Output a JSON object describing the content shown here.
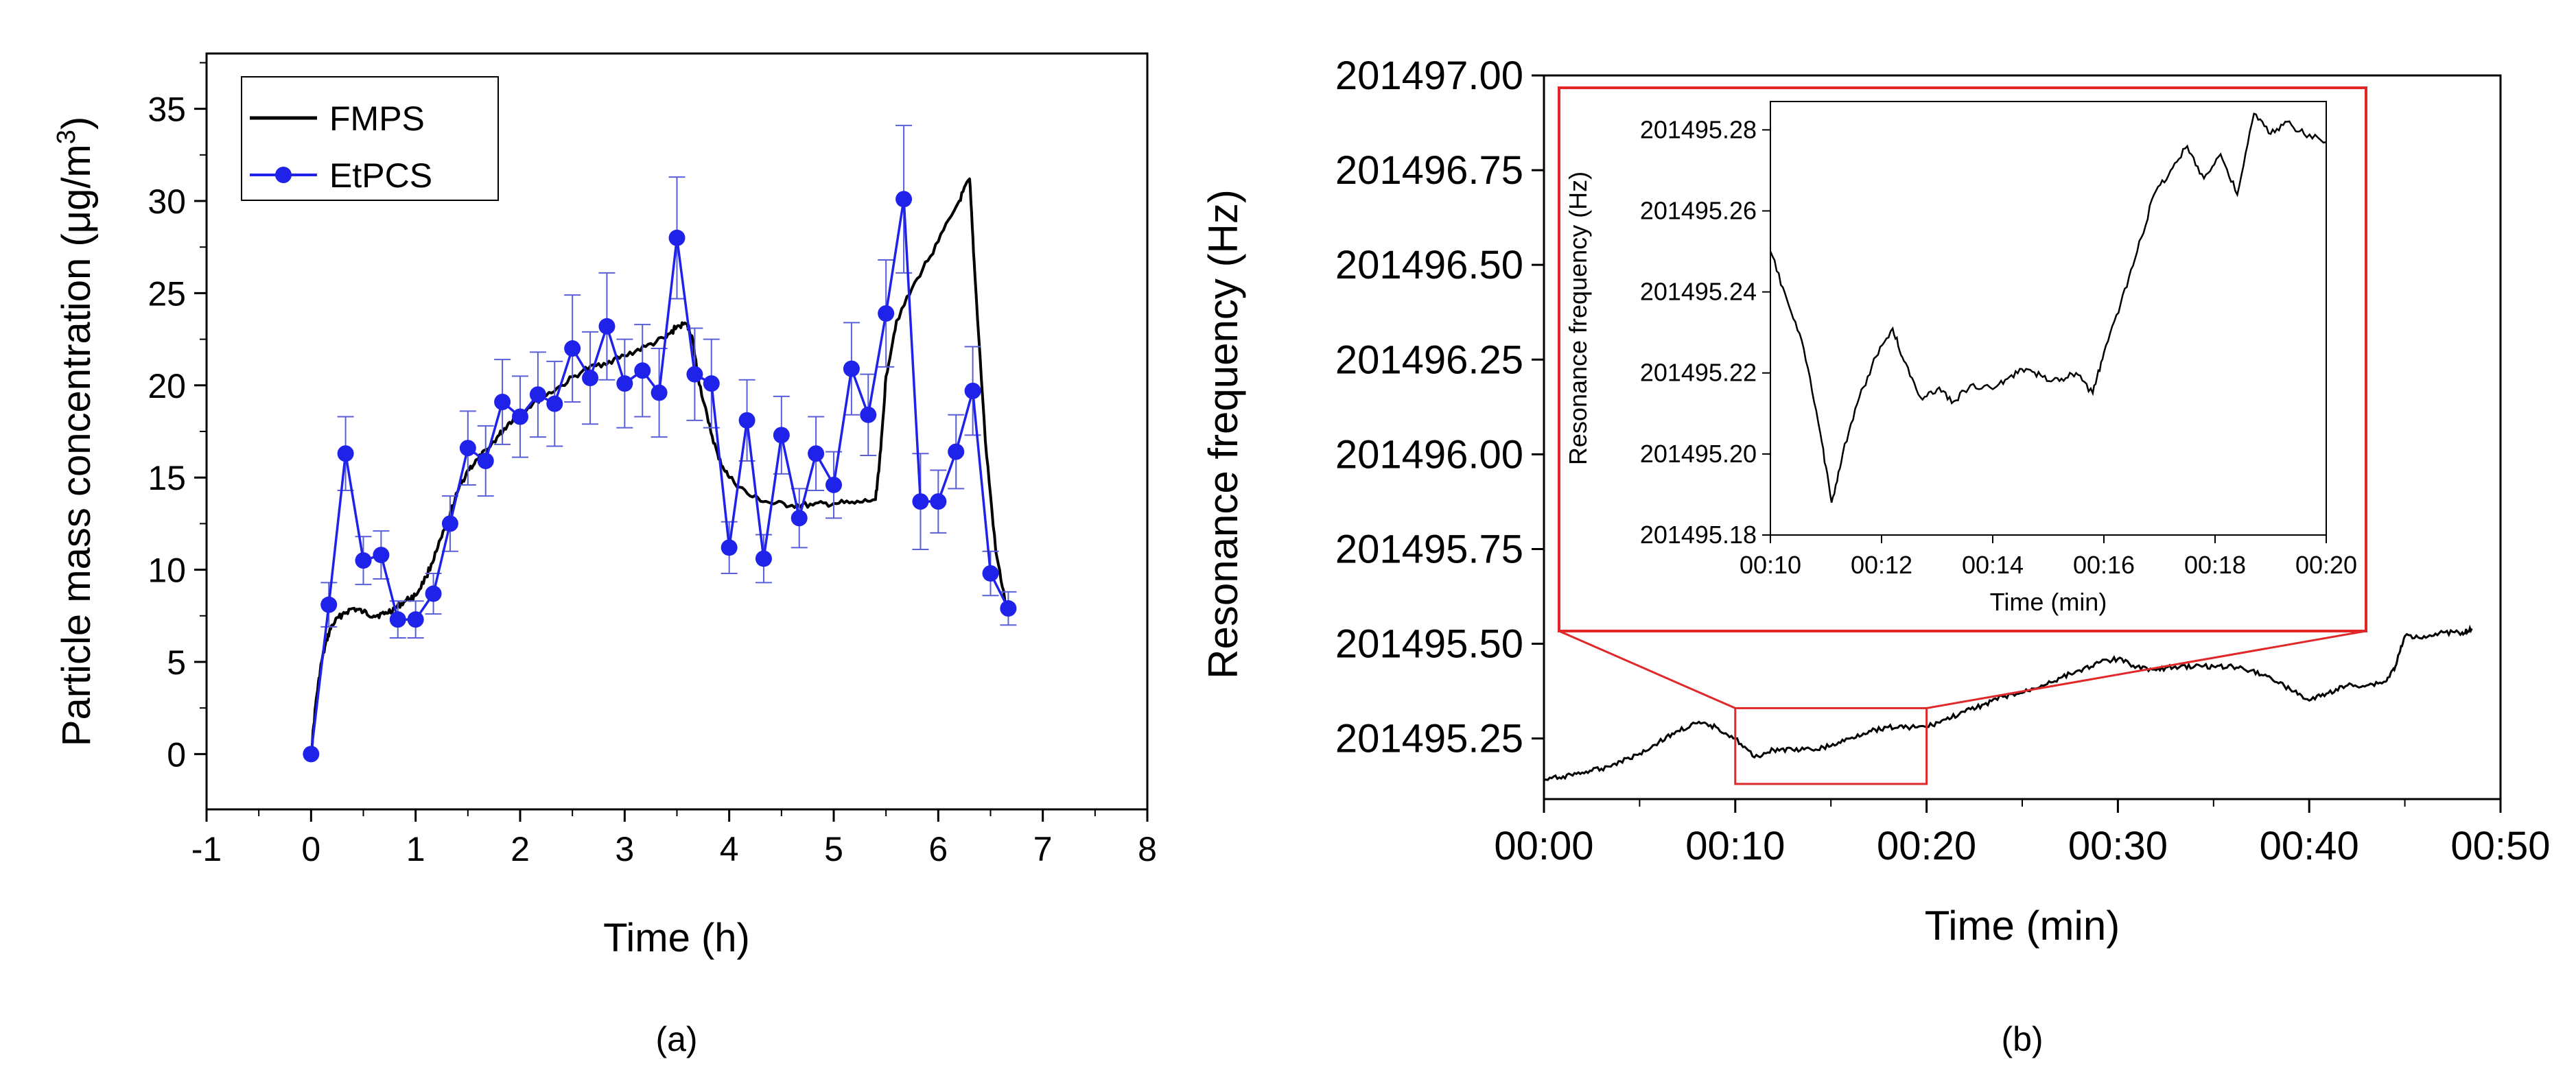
{
  "panels": {
    "a_caption": "(a)",
    "b_caption": "(b)"
  },
  "chart_data": [
    {
      "type": "line",
      "xlabel": "Time (h)",
      "ylabel": "Particle mass concentration (μg/m³)",
      "ylabel_main": "Particle mass concentration (",
      "ylabel_mu": "μ",
      "ylabel_unit": "g/m",
      "ylabel_sup": "3",
      "ylabel_close": ")",
      "xlim": [
        -1,
        8
      ],
      "ylim": [
        -3,
        38
      ],
      "xticks": [
        -1,
        0,
        1,
        2,
        3,
        4,
        5,
        6,
        7,
        8
      ],
      "yticks": [
        0,
        5,
        10,
        15,
        20,
        25,
        30,
        35
      ],
      "legend_position": "top-left",
      "grid": false,
      "series": [
        {
          "name": "FMPS",
          "color": "#000000",
          "x": [
            0,
            0.05,
            0.1,
            0.15,
            0.2,
            0.3,
            0.4,
            0.5,
            0.6,
            0.7,
            0.8,
            0.9,
            1.0,
            1.1,
            1.2,
            1.3,
            1.4,
            1.5,
            1.6,
            1.7,
            1.8,
            1.9,
            2.0,
            2.2,
            2.4,
            2.6,
            2.8,
            3.0,
            3.2,
            3.4,
            3.5,
            3.6,
            3.65,
            3.7,
            3.8,
            3.9,
            4.0,
            4.2,
            4.4,
            4.6,
            4.8,
            5.0,
            5.2,
            5.4,
            5.45,
            5.5,
            5.6,
            5.8,
            6.0,
            6.2,
            6.3,
            6.35,
            6.45,
            6.55,
            6.65
          ],
          "values": [
            0,
            3.0,
            5.0,
            6.2,
            7.0,
            7.6,
            7.9,
            7.7,
            7.5,
            7.6,
            7.9,
            8.3,
            8.6,
            9.6,
            11.0,
            12.5,
            14.2,
            15.4,
            16.0,
            16.6,
            17.3,
            18.0,
            18.5,
            19.3,
            20.0,
            20.8,
            21.2,
            21.6,
            22.1,
            22.6,
            23.2,
            23.3,
            22.5,
            20.5,
            18.0,
            16.0,
            15.0,
            14.0,
            13.6,
            13.5,
            13.5,
            13.6,
            13.6,
            13.8,
            16.5,
            20.5,
            23.5,
            25.8,
            27.8,
            30.0,
            31.2,
            26.0,
            17.0,
            11.0,
            8.0
          ]
        },
        {
          "name": "EtPCS",
          "color": "#1f22e8",
          "x": [
            0,
            0.17,
            0.33,
            0.5,
            0.67,
            0.83,
            1.0,
            1.17,
            1.33,
            1.5,
            1.67,
            1.83,
            2.0,
            2.17,
            2.33,
            2.5,
            2.67,
            2.83,
            3.0,
            3.17,
            3.33,
            3.5,
            3.67,
            3.83,
            4.0,
            4.17,
            4.33,
            4.5,
            4.67,
            4.83,
            5.0,
            5.17,
            5.33,
            5.5,
            5.67,
            5.83,
            6.0,
            6.17,
            6.33,
            6.5,
            6.67
          ],
          "values": [
            0,
            8.1,
            16.3,
            10.5,
            10.8,
            7.3,
            7.3,
            8.7,
            12.5,
            16.6,
            15.9,
            19.1,
            18.3,
            19.5,
            19.0,
            22.0,
            20.4,
            23.2,
            20.1,
            20.8,
            19.6,
            28.0,
            20.6,
            20.1,
            11.2,
            18.1,
            10.6,
            17.3,
            12.8,
            16.3,
            14.6,
            20.9,
            18.4,
            23.9,
            30.1,
            13.7,
            13.7,
            16.4,
            19.7,
            9.8,
            7.9
          ],
          "errors": [
            0,
            1.2,
            2.0,
            1.3,
            1.3,
            1.0,
            1.0,
            1.1,
            1.5,
            2.0,
            1.9,
            2.3,
            2.2,
            2.3,
            2.3,
            2.9,
            2.5,
            2.9,
            2.4,
            2.5,
            2.4,
            3.3,
            2.5,
            2.4,
            1.4,
            2.2,
            1.3,
            2.1,
            1.6,
            2.0,
            1.8,
            2.5,
            2.2,
            2.9,
            4.0,
            2.6,
            1.7,
            2.0,
            2.4,
            1.2,
            0.9
          ]
        }
      ]
    },
    {
      "type": "line",
      "xlabel": "Time (min)",
      "ylabel": "Resonance frequency (Hz)",
      "xlim": [
        0,
        50
      ],
      "ylim": [
        201495.09,
        201497.0
      ],
      "xticks": [
        0,
        10,
        20,
        30,
        40,
        50
      ],
      "xtick_labels": [
        "00:00",
        "00:10",
        "00:20",
        "00:30",
        "00:40",
        "00:50"
      ],
      "yticks": [
        201495.25,
        201495.5,
        201495.75,
        201496.0,
        201496.25,
        201496.5,
        201496.75,
        201497.0
      ],
      "ytick_labels": [
        "201495.25",
        "201495.50",
        "201495.75",
        "201496.00",
        "201496.25",
        "201496.50",
        "201496.75",
        "201497.00"
      ],
      "grid": false,
      "zoom_box_color": "#e0282a",
      "zoom_box": {
        "x": [
          10,
          20
        ],
        "y": [
          201495.13,
          201495.33
        ]
      },
      "series": [
        {
          "name": "",
          "color": "#000000",
          "x": [
            0,
            1,
            2,
            3,
            4,
            5,
            6,
            7,
            8,
            9,
            10,
            11,
            12,
            13,
            14,
            15,
            16,
            17,
            18,
            19,
            20,
            21,
            22,
            23,
            24,
            25,
            26,
            27,
            28,
            29,
            30,
            31,
            32,
            33,
            34,
            35,
            36,
            37,
            38,
            39,
            40,
            41,
            42,
            43,
            44,
            44.5,
            45,
            46,
            47,
            48,
            48.5
          ],
          "values": [
            201495.14,
            201495.15,
            201495.16,
            201495.17,
            201495.19,
            201495.21,
            201495.24,
            201495.27,
            201495.29,
            201495.28,
            201495.25,
            201495.2,
            201495.22,
            201495.22,
            201495.22,
            201495.23,
            201495.25,
            201495.27,
            201495.28,
            201495.28,
            201495.28,
            201495.3,
            201495.32,
            201495.34,
            201495.36,
            201495.37,
            201495.39,
            201495.41,
            201495.43,
            201495.45,
            201495.46,
            201495.44,
            201495.43,
            201495.44,
            201495.44,
            201495.44,
            201495.44,
            201495.43,
            201495.41,
            201495.38,
            201495.35,
            201495.37,
            201495.39,
            201495.39,
            201495.4,
            201495.44,
            201495.52,
            201495.52,
            201495.53,
            201495.53,
            201495.54
          ]
        }
      ],
      "inset": {
        "xlabel": "Time (min)",
        "ylabel": "Resonance frequency (Hz)",
        "xlim": [
          10,
          20
        ],
        "ylim": [
          201495.18,
          201495.287
        ],
        "xticks": [
          10,
          12,
          14,
          16,
          18,
          20
        ],
        "xtick_labels": [
          "00:10",
          "00:12",
          "00:14",
          "00:16",
          "00:18",
          "00:20"
        ],
        "yticks": [
          201495.18,
          201495.2,
          201495.22,
          201495.24,
          201495.26,
          201495.28
        ],
        "ytick_labels": [
          "201495.18",
          "201495.20",
          "201495.22",
          "201495.24",
          "201495.26",
          "201495.28"
        ],
        "series": [
          {
            "name": "",
            "color": "#000000",
            "x": [
              10,
              10.3,
              10.6,
              10.9,
              11.1,
              11.3,
              11.6,
              11.9,
              12.2,
              12.4,
              12.7,
              13.0,
              13.3,
              13.6,
              14.0,
              14.3,
              14.6,
              14.9,
              15.2,
              15.5,
              15.8,
              16.0,
              16.3,
              16.6,
              16.9,
              17.2,
              17.5,
              17.8,
              18.1,
              18.4,
              18.7,
              19.0,
              19.3,
              19.6,
              20.0
            ],
            "values": [
              201495.25,
              201495.238,
              201495.226,
              201495.205,
              201495.188,
              201495.2,
              201495.214,
              201495.224,
              201495.231,
              201495.223,
              201495.214,
              201495.216,
              201495.213,
              201495.217,
              201495.216,
              201495.219,
              201495.221,
              201495.219,
              201495.218,
              201495.22,
              201495.215,
              201495.225,
              201495.237,
              201495.25,
              201495.264,
              201495.27,
              201495.276,
              201495.268,
              201495.274,
              201495.264,
              201495.284,
              201495.279,
              201495.282,
              201495.279,
              201495.277
            ]
          }
        ]
      }
    }
  ]
}
